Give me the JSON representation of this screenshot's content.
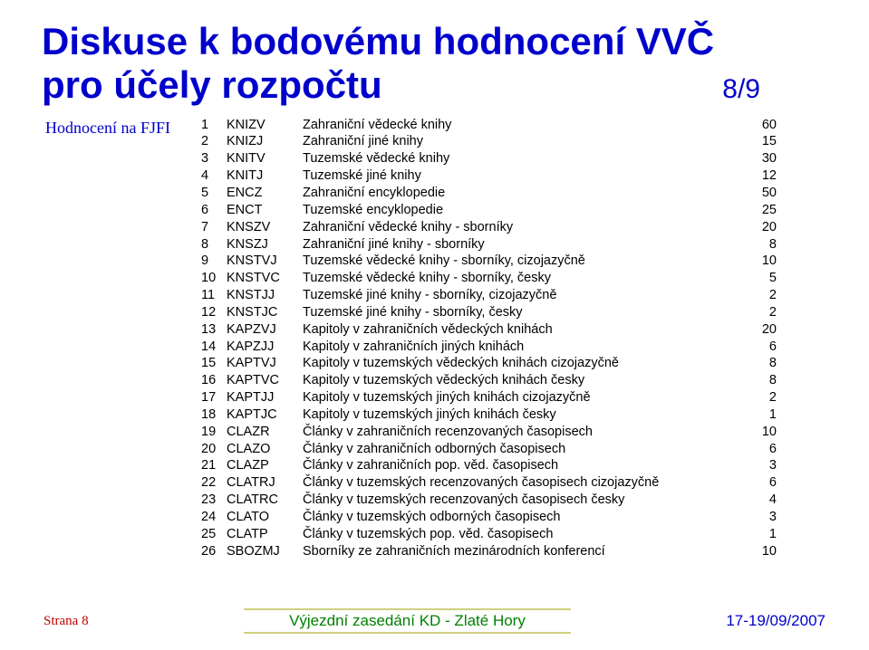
{
  "title_line1": "Diskuse k bodovému hodnocení VVČ",
  "title_line2": "pro účely rozpočtu",
  "page_indicator": "8/9",
  "subtitle": "Hodnocení na FJFI",
  "rows": [
    {
      "n": "1",
      "code": "KNIZV",
      "desc": "Zahraniční vědecké knihy",
      "val": "60"
    },
    {
      "n": "2",
      "code": "KNIZJ",
      "desc": "Zahraniční jiné knihy",
      "val": "15"
    },
    {
      "n": "3",
      "code": "KNITV",
      "desc": "Tuzemské vědecké knihy",
      "val": "30"
    },
    {
      "n": "4",
      "code": "KNITJ",
      "desc": "Tuzemské jiné knihy",
      "val": "12"
    },
    {
      "n": "5",
      "code": "ENCZ",
      "desc": "Zahraniční encyklopedie",
      "val": "50"
    },
    {
      "n": "6",
      "code": "ENCT",
      "desc": "Tuzemské encyklopedie",
      "val": "25"
    },
    {
      "n": "7",
      "code": "KNSZV",
      "desc": "Zahraniční vědecké knihy - sborníky",
      "val": "20"
    },
    {
      "n": "8",
      "code": "KNSZJ",
      "desc": "Zahraniční jiné knihy - sborníky",
      "val": "8"
    },
    {
      "n": "9",
      "code": "KNSTVJ",
      "desc": "Tuzemské vědecké knihy - sborníky, cizojazyčně",
      "val": "10"
    },
    {
      "n": "10",
      "code": "KNSTVC",
      "desc": "Tuzemské vědecké knihy - sborníky, česky",
      "val": "5"
    },
    {
      "n": "11",
      "code": "KNSTJJ",
      "desc": "Tuzemské jiné knihy - sborníky, cizojazyčně",
      "val": "2"
    },
    {
      "n": "12",
      "code": "KNSTJC",
      "desc": "Tuzemské jiné knihy - sborníky, česky",
      "val": "2"
    },
    {
      "n": "13",
      "code": "KAPZVJ",
      "desc": "Kapitoly v zahraničních vědeckých knihách",
      "val": "20"
    },
    {
      "n": "14",
      "code": "KAPZJJ",
      "desc": "Kapitoly v zahraničních jiných knihách",
      "val": "6"
    },
    {
      "n": "15",
      "code": "KAPTVJ",
      "desc": "Kapitoly v tuzemských vědeckých knihách cizojazyčně",
      "val": "8"
    },
    {
      "n": "16",
      "code": "KAPTVC",
      "desc": "Kapitoly v tuzemských vědeckých knihách česky",
      "val": "8"
    },
    {
      "n": "17",
      "code": "KAPTJJ",
      "desc": "Kapitoly v tuzemských jiných knihách cizojazyčně",
      "val": "2"
    },
    {
      "n": "18",
      "code": "KAPTJC",
      "desc": "Kapitoly v tuzemských jiných knihách česky",
      "val": "1"
    },
    {
      "n": "19",
      "code": "CLAZR",
      "desc": "Články v zahraničních recenzovaných časopisech",
      "val": "10"
    },
    {
      "n": "20",
      "code": "CLAZO",
      "desc": "Články v zahraničních odborných časopisech",
      "val": "6"
    },
    {
      "n": "21",
      "code": "CLAZP",
      "desc": "Články v zahraničních pop. věd. časopisech",
      "val": "3"
    },
    {
      "n": "22",
      "code": "CLATRJ",
      "desc": "Články v tuzemských recenzovaných časopisech cizojazyčně",
      "val": "6"
    },
    {
      "n": "23",
      "code": "CLATRC",
      "desc": "Články v tuzemských recenzovaných časopisech česky",
      "val": "4"
    },
    {
      "n": "24",
      "code": "CLATO",
      "desc": "Články v tuzemských odborných časopisech",
      "val": "3"
    },
    {
      "n": "25",
      "code": "CLATP",
      "desc": "Články v tuzemských pop. věd. časopisech",
      "val": "1"
    },
    {
      "n": "26",
      "code": "SBOZMJ",
      "desc": "Sborníky ze zahraničních mezinárodních konferencí",
      "val": "10"
    }
  ],
  "footer_left": "Strana 8",
  "footer_center": "Výjezdní zasedání KD - Zlaté Hory",
  "footer_right": "17-19/09/2007",
  "colors": {
    "title": "#0000cc",
    "footer_left": "#c00000",
    "footer_center": "#008000",
    "footer_right": "#0000cc"
  }
}
